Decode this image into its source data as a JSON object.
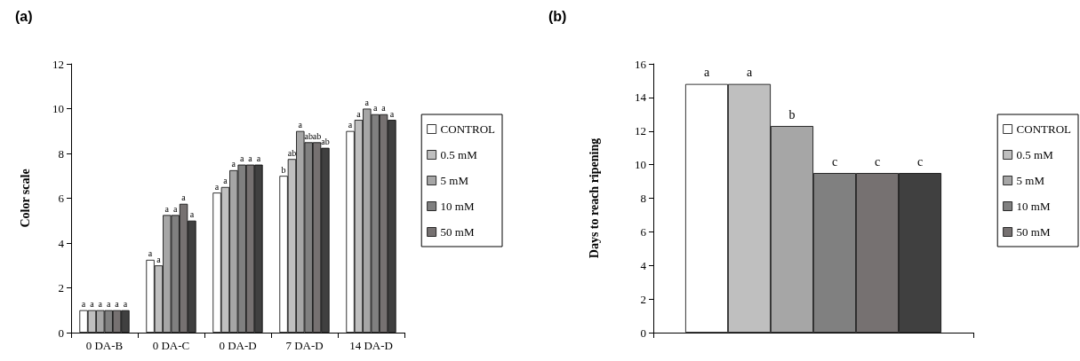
{
  "chart_data": [
    {
      "type": "bar",
      "title": "(a)",
      "ylabel": "Color scale",
      "categories": [
        "0 DA-B",
        "0 DA-C",
        "0 DA-D",
        "7 DA-D",
        "14 DA-D"
      ],
      "ylim": [
        0,
        12
      ],
      "yticks": [
        0,
        2,
        4,
        6,
        8,
        10,
        12
      ],
      "grid": false,
      "legend": "right",
      "series": [
        {
          "name": "CONTROL",
          "color": "#ffffff",
          "values": [
            1,
            3.25,
            6.25,
            7.0,
            9.0
          ],
          "value_labels": [
            "a",
            "a",
            "a",
            "b",
            "a"
          ]
        },
        {
          "name": "0.5 mM",
          "color": "#bfbfbf",
          "values": [
            1,
            3.0,
            6.5,
            7.75,
            9.5
          ],
          "value_labels": [
            "a",
            "a",
            "a",
            "ab",
            "a"
          ]
        },
        {
          "name": "5 mM",
          "color": "#a6a6a6",
          "values": [
            1,
            5.25,
            7.25,
            9.0,
            10.0
          ],
          "value_labels": [
            "a",
            "a",
            "a",
            "a",
            "a"
          ]
        },
        {
          "name": "10 mM",
          "color": "#808080",
          "values": [
            1,
            5.25,
            7.5,
            8.5,
            9.75
          ],
          "value_labels": [
            "a",
            "a",
            "a",
            "ab",
            "a"
          ]
        },
        {
          "name": "50 mM",
          "color": "#767171",
          "values": [
            1,
            5.75,
            7.5,
            8.5,
            9.75
          ],
          "value_labels": [
            "a",
            "a",
            "a",
            "ab",
            "a"
          ]
        },
        {
          "color": "#404040",
          "values": [
            1,
            5.0,
            7.5,
            8.25,
            9.5
          ],
          "value_labels": [
            "a",
            "a",
            "a",
            "ab",
            "a"
          ]
        }
      ]
    },
    {
      "type": "bar",
      "title": "(b)",
      "ylabel": "Days to reach ripening",
      "categories": [
        null
      ],
      "ylim": [
        0,
        16
      ],
      "yticks": [
        0,
        2,
        4,
        6,
        8,
        10,
        12,
        14,
        16
      ],
      "grid": false,
      "legend": "right",
      "series": [
        {
          "name": "CONTROL",
          "color": "#ffffff",
          "values": [
            14.8
          ],
          "value_labels": [
            "a"
          ]
        },
        {
          "name": "0.5 mM",
          "color": "#bfbfbf",
          "values": [
            14.8
          ],
          "value_labels": [
            "a"
          ]
        },
        {
          "name": "5 mM",
          "color": "#a6a6a6",
          "values": [
            12.3
          ],
          "value_labels": [
            "b"
          ]
        },
        {
          "name": "10 mM",
          "color": "#808080",
          "values": [
            9.5
          ],
          "value_labels": [
            "c"
          ]
        },
        {
          "name": "50 mM",
          "color": "#767171",
          "values": [
            9.5
          ],
          "value_labels": [
            "c"
          ]
        },
        {
          "color": "#404040",
          "values": [
            9.5
          ],
          "value_labels": [
            "c"
          ]
        }
      ]
    }
  ]
}
